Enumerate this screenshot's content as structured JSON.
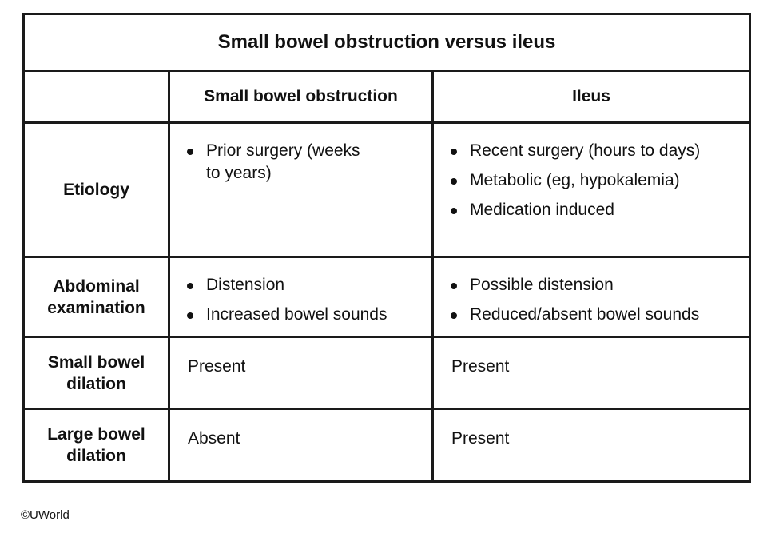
{
  "table": {
    "title": "Small bowel obstruction versus ileus",
    "columns": [
      "",
      "Small bowel obstruction",
      "Ileus"
    ],
    "rows": [
      {
        "label": "Etiology",
        "sbo": [
          "Prior surgery (weeks to years)"
        ],
        "ileus": [
          "Recent surgery (hours to days)",
          "Metabolic (eg, hypokalemia)",
          "Medication induced"
        ]
      },
      {
        "label": "Abdominal examination",
        "sbo": [
          "Distension",
          "Increased bowel sounds"
        ],
        "ileus": [
          "Possible distension",
          "Reduced/absent bowel sounds"
        ]
      },
      {
        "label": "Small bowel dilation",
        "sbo": "Present",
        "ileus": "Present"
      },
      {
        "label": "Large bowel dilation",
        "sbo": "Absent",
        "ileus": "Present"
      }
    ]
  },
  "footer": {
    "copyright": "©UWorld"
  }
}
